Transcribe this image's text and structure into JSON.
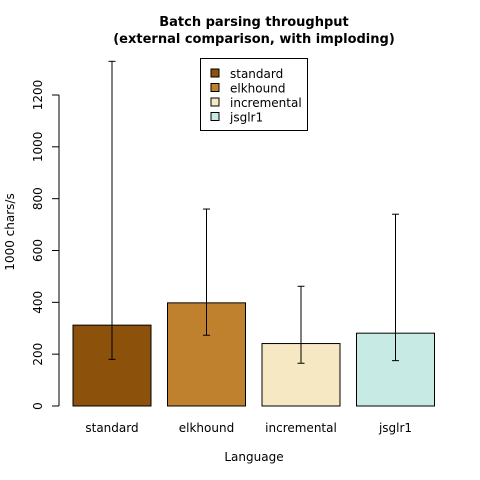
{
  "chart_data": {
    "type": "bar",
    "title_line1": "Batch parsing throughput",
    "title_line2": "(external comparison, with imploding)",
    "xlabel": "Language",
    "ylabel": "1000 chars/s",
    "ylim": [
      0,
      1300
    ],
    "yticks": [
      "0",
      "200",
      "400",
      "600",
      "800",
      "1000",
      "1200"
    ],
    "ytick_values": [
      0,
      200,
      400,
      600,
      800,
      1000,
      1200
    ],
    "categories": [
      "standard",
      "elkhound",
      "incremental",
      "jsglr1"
    ],
    "values": [
      312,
      398,
      241,
      281
    ],
    "error_low": [
      180,
      273,
      165,
      175
    ],
    "error_high": [
      1330,
      760,
      462,
      740
    ],
    "colors": [
      "#8c510a",
      "#bf812d",
      "#f6e8c3",
      "#c7eae5"
    ],
    "legend": {
      "placement": "top-center",
      "entries": [
        "standard",
        "elkhound",
        "incremental",
        "jsglr1"
      ]
    },
    "grid": false
  }
}
